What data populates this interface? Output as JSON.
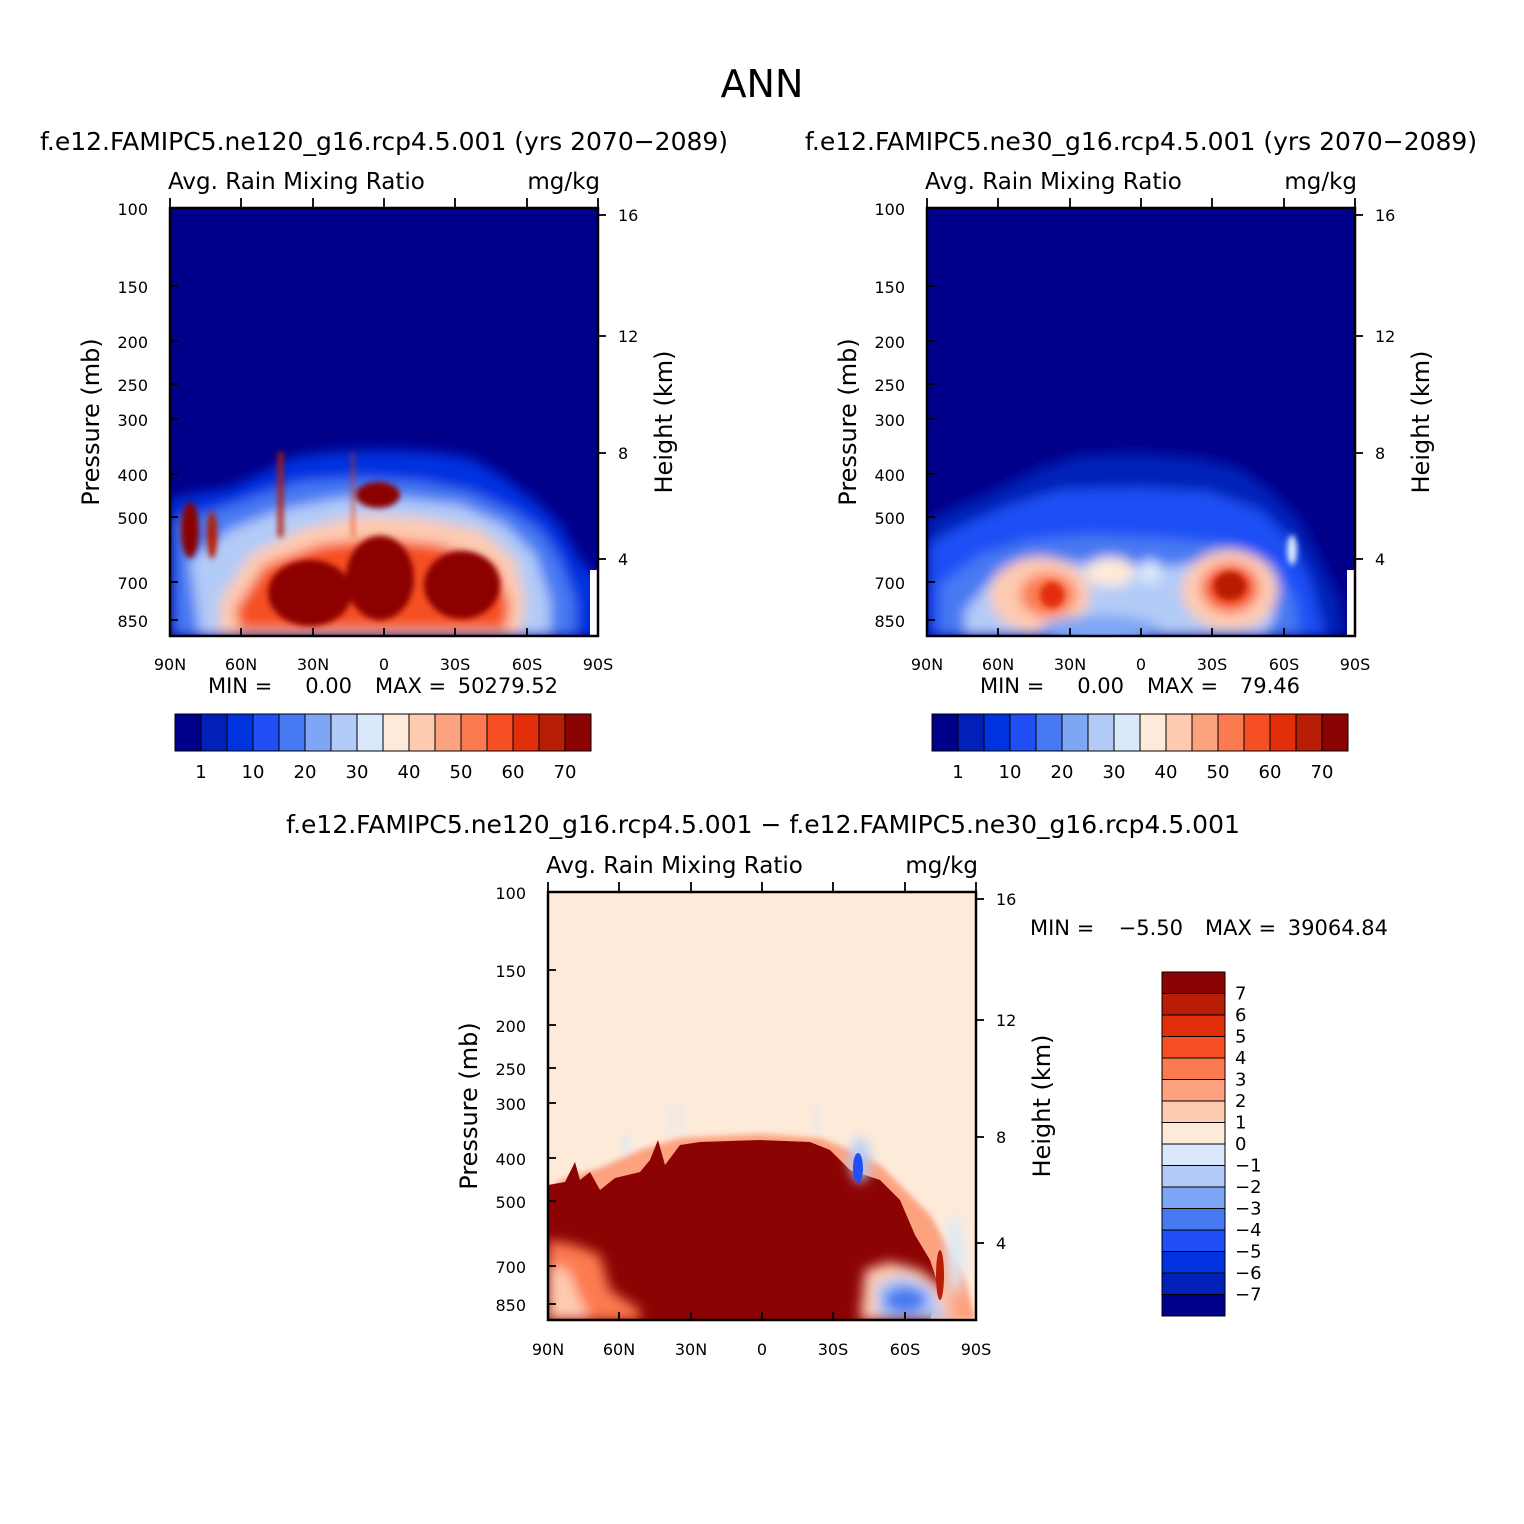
{
  "figure": {
    "title": "ANN",
    "diff_title": "f.e12.FAMIPC5.ne120_g16.rcp4.5.001 − f.e12.FAMIPC5.ne30_g16.rcp4.5.001"
  },
  "chart_data": [
    {
      "type": "heatmap",
      "id": "p1",
      "title": "f.e12.FAMIPC5.ne120_g16.rcp4.5.001 (yrs 2070−2089)",
      "variable": "Avg. Rain Mixing Ratio",
      "units": "mg/kg",
      "ylabel": "Pressure (mb)",
      "y2label": "Height (km)",
      "xticks": [
        "90N",
        "60N",
        "30N",
        "0",
        "30S",
        "60S",
        "90S"
      ],
      "yticks": [
        100,
        150,
        200,
        250,
        300,
        400,
        500,
        700,
        850
      ],
      "y2ticks": [
        16,
        12,
        8,
        4
      ],
      "ylim": [
        100,
        1000
      ],
      "y_scale": "log",
      "min_text": "MIN =",
      "min_value": "0.00",
      "max_text": "MAX =",
      "max_value": "50279.52",
      "colorbar_labels": [
        "1",
        "10",
        "20",
        "30",
        "40",
        "50",
        "60",
        "70"
      ],
      "colors": [
        "#00008b",
        "#0020b8",
        "#0033e0",
        "#1f4ff5",
        "#4779f2",
        "#7ea6f5",
        "#b2cbf7",
        "#d9e9fb",
        "#feead9",
        "#fecbb0",
        "#fca27f",
        "#fb7a4f",
        "#f54f23",
        "#e22f0a",
        "#b81d05",
        "#8c0303"
      ]
    },
    {
      "type": "heatmap",
      "id": "p2",
      "title": "f.e12.FAMIPC5.ne30_g16.rcp4.5.001 (yrs 2070−2089)",
      "variable": "Avg. Rain Mixing Ratio",
      "units": "mg/kg",
      "ylabel": "Pressure (mb)",
      "y2label": "Height (km)",
      "xticks": [
        "90N",
        "60N",
        "30N",
        "0",
        "30S",
        "60S",
        "90S"
      ],
      "yticks": [
        100,
        150,
        200,
        250,
        300,
        400,
        500,
        700,
        850
      ],
      "y2ticks": [
        16,
        12,
        8,
        4
      ],
      "ylim": [
        100,
        1000
      ],
      "y_scale": "log",
      "min_text": "MIN =",
      "min_value": "0.00",
      "max_text": "MAX =",
      "max_value": "79.46",
      "colorbar_labels": [
        "1",
        "10",
        "20",
        "30",
        "40",
        "50",
        "60",
        "70"
      ],
      "colors": [
        "#00008b",
        "#0020b8",
        "#0033e0",
        "#1f4ff5",
        "#4779f2",
        "#7ea6f5",
        "#b2cbf7",
        "#d9e9fb",
        "#feead9",
        "#fecbb0",
        "#fca27f",
        "#fb7a4f",
        "#f54f23",
        "#e22f0a",
        "#b81d05",
        "#8c0303"
      ]
    },
    {
      "type": "heatmap",
      "id": "p3",
      "variable": "Avg. Rain Mixing Ratio",
      "units": "mg/kg",
      "ylabel": "Pressure (mb)",
      "y2label": "Height (km)",
      "xticks": [
        "90N",
        "60N",
        "30N",
        "0",
        "30S",
        "60S",
        "90S"
      ],
      "yticks": [
        100,
        150,
        200,
        250,
        300,
        400,
        500,
        700,
        850
      ],
      "y2ticks": [
        16,
        12,
        8,
        4
      ],
      "ylim": [
        100,
        1000
      ],
      "y_scale": "log",
      "min_text": "MIN =",
      "min_value": "−5.50",
      "max_text": "MAX =",
      "max_value": "39064.84",
      "colorbar_labels": [
        "7",
        "6",
        "5",
        "4",
        "3",
        "2",
        "1",
        "0",
        "−1",
        "−2",
        "−3",
        "−4",
        "−5",
        "−6",
        "−7"
      ],
      "colors": [
        "#8c0303",
        "#b81d05",
        "#e22f0a",
        "#f54f23",
        "#fb7a4f",
        "#fca27f",
        "#fecbb0",
        "#feead9",
        "#d9e9fb",
        "#b2cbf7",
        "#7ea6f5",
        "#4779f2",
        "#1f4ff5",
        "#0033e0",
        "#0020b8",
        "#00008b"
      ]
    }
  ]
}
